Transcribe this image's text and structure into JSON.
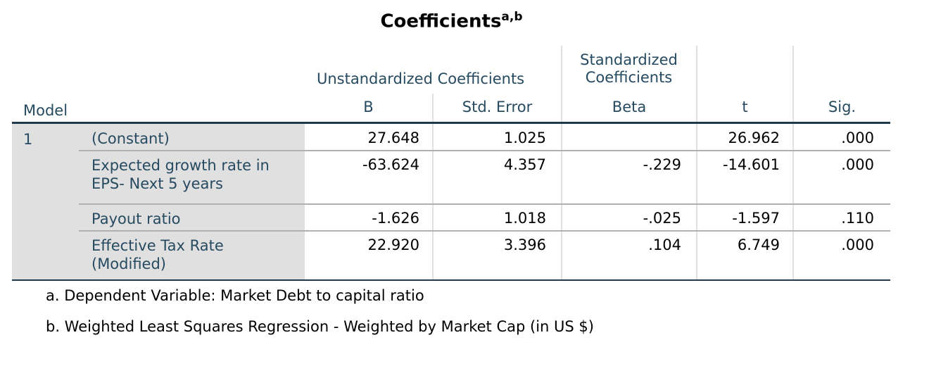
{
  "title": "Coefficients",
  "title_sup": "a,b",
  "headers": {
    "model": "Model",
    "unstd": "Unstandardized Coefficients",
    "std_line1": "Standardized",
    "std_line2": "Coefficients",
    "b": "B",
    "se": "Std. Error",
    "beta": "Beta",
    "t": "t",
    "sig": "Sig."
  },
  "model_number": "1",
  "rows": [
    {
      "label": "(Constant)",
      "b": "27.648",
      "se": "1.025",
      "beta": "",
      "t": "26.962",
      "sig": ".000"
    },
    {
      "label": "Expected growth rate in EPS- Next 5 years",
      "b": "-63.624",
      "se": "4.357",
      "beta": "-.229",
      "t": "-14.601",
      "sig": ".000"
    },
    {
      "label": "Payout ratio",
      "b": "-1.626",
      "se": "1.018",
      "beta": "-.025",
      "t": "-1.597",
      "sig": ".110"
    },
    {
      "label": "Effective Tax Rate (Modified)",
      "b": "22.920",
      "se": "3.396",
      "beta": ".104",
      "t": "6.749",
      "sig": ".000"
    }
  ],
  "footnotes": [
    "a. Dependent Variable: Market Debt to capital ratio",
    "b. Weighted Least Squares Regression - Weighted by Market Cap (in US $)"
  ],
  "colors": {
    "header_text": "#264a60",
    "label_bg": "#e0e0e0",
    "rule": "#1f3a4d"
  }
}
